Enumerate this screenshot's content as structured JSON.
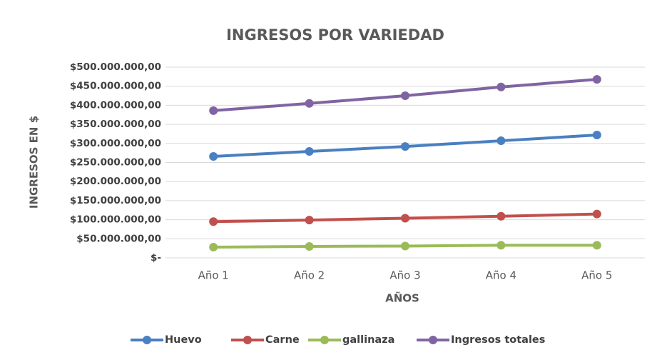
{
  "chart_data": {
    "type": "line",
    "title": "INGRESOS POR VARIEDAD",
    "x_label": "AÑOS",
    "y_label": "INGRESOS EN $",
    "categories": [
      "Año 1",
      "Año 2",
      "Año 3",
      "Año 4",
      "Año 5"
    ],
    "series": [
      {
        "name": "Huevo",
        "color": "#4a7fc1",
        "values": [
          266000000,
          279000000,
          292000000,
          307000000,
          322000000
        ]
      },
      {
        "name": "Carne",
        "color": "#c0504d",
        "values": [
          95000000,
          99000000,
          104000000,
          109000000,
          115000000
        ]
      },
      {
        "name": "gallinaza",
        "color": "#9bbb59",
        "values": [
          28000000,
          30000000,
          31000000,
          33000000,
          33000000
        ]
      },
      {
        "name": "Ingresos totales",
        "color": "#8064a2",
        "values": [
          386000000,
          405000000,
          425000000,
          448000000,
          468000000
        ]
      }
    ],
    "ylim": [
      0,
      500000000
    ],
    "yticks": [
      {
        "value": 0,
        "label": "$-"
      },
      {
        "value": 50000000,
        "label": "$50.000.000,00"
      },
      {
        "value": 100000000,
        "label": "$100.000.000,00"
      },
      {
        "value": 150000000,
        "label": "$150.000.000,00"
      },
      {
        "value": 200000000,
        "label": "$200.000.000,00"
      },
      {
        "value": 250000000,
        "label": "$250.000.000,00"
      },
      {
        "value": 300000000,
        "label": "$300.000.000,00"
      },
      {
        "value": 350000000,
        "label": "$350.000.000,00"
      },
      {
        "value": 400000000,
        "label": "$400.000.000,00"
      },
      {
        "value": 450000000,
        "label": "$450.000.000,00"
      },
      {
        "value": 500000000,
        "label": "$500.000.000,00"
      }
    ],
    "grid": true,
    "legend": "bottom"
  }
}
